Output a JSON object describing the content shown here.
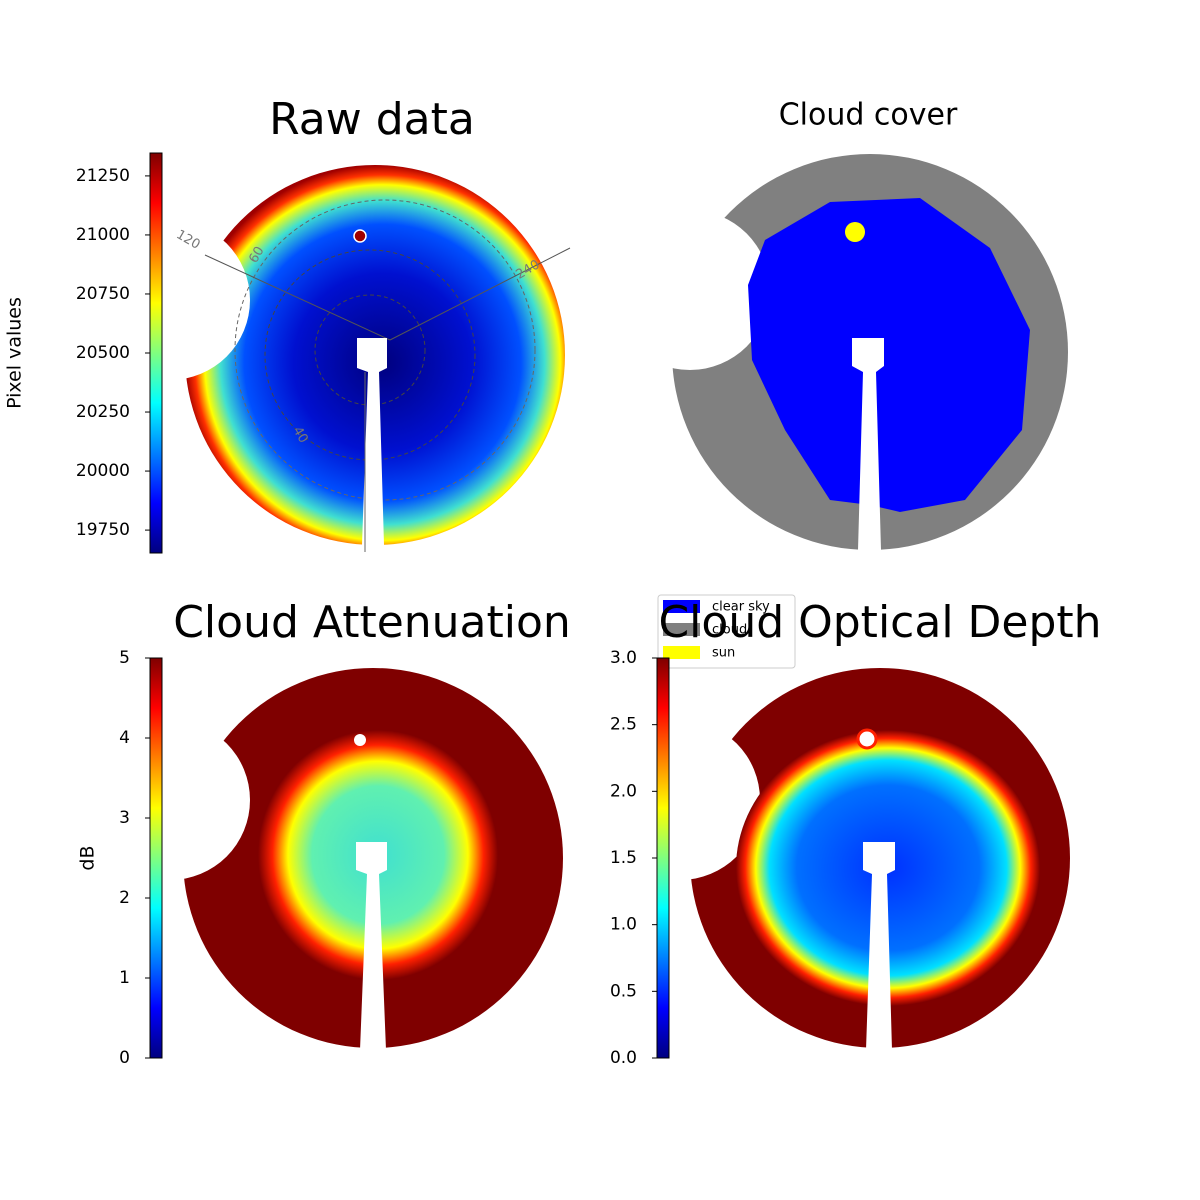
{
  "chart_data": [
    {
      "type": "image",
      "title": "Raw data",
      "colorbar": {
        "label": "Pixel values",
        "ylim": [
          19653,
          21347
        ],
        "yticks": [
          19750,
          20000,
          20250,
          20500,
          20750,
          21000,
          21250
        ]
      },
      "annotations": [
        "120",
        "60",
        "240",
        "40"
      ]
    },
    {
      "type": "image",
      "title": "Cloud cover",
      "series": [
        {
          "name": "clear sky",
          "color": "#0000ff"
        },
        {
          "name": "cloud",
          "color": "#808080"
        },
        {
          "name": "sun",
          "color": "#ffff00"
        }
      ]
    },
    {
      "type": "image",
      "title": "Cloud Attenuation",
      "colorbar": {
        "label": "dB",
        "ylim": [
          0,
          5
        ],
        "yticks": [
          0,
          1,
          2,
          3,
          4,
          5
        ]
      }
    },
    {
      "type": "image",
      "title": "Cloud Optical Depth",
      "colorbar": {
        "ylim": [
          0,
          3
        ],
        "yticks": [
          {
            "value": 0,
            "label": "0.0"
          },
          0.5,
          {
            "value": 1,
            "label": "1.0"
          },
          1.5,
          {
            "value": 2,
            "label": "2.0"
          },
          2.5,
          {
            "value": 3,
            "label": "3.0"
          }
        ]
      }
    }
  ]
}
